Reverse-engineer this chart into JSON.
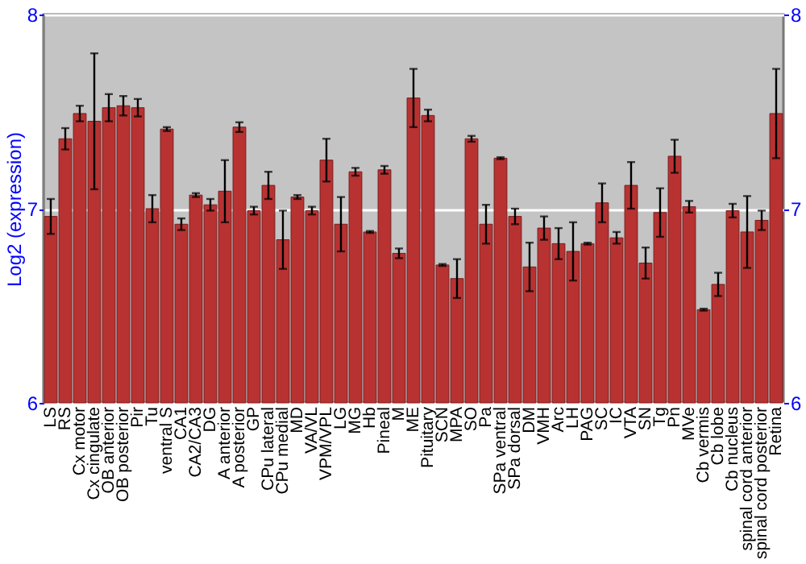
{
  "chart_data": {
    "type": "bar",
    "ylabel": "Log2 (expression)",
    "categories": [
      "LS",
      "RS",
      "Cx motor",
      "Cx cingulate",
      "OB anterior",
      "OB posterior",
      "Pir",
      "Tu",
      "ventral S",
      "CA1",
      "CA2/CA3",
      "DG",
      "A anterior",
      "A posterior",
      "GP",
      "CPu lateral",
      "CPu medial",
      "MD",
      "VA/VL",
      "VPM/VPL",
      "LG",
      "MG",
      "Hb",
      "Pineal",
      "M",
      "ME",
      "Pituitary",
      "SCN",
      "MPA",
      "SO",
      "Pa",
      "SPa ventral",
      "SPa dorsal",
      "DM",
      "VMH",
      "Arc",
      "LH",
      "PAG",
      "SC",
      "IC",
      "VTA",
      "SN",
      "Tg",
      "Pn",
      "MVe",
      "Cb vermis",
      "Cb lobe",
      "Cb nucleus",
      "spinal cord anterior",
      "spinal cord posterior",
      "Retina"
    ],
    "series": [
      {
        "color": "#b83232",
        "values": [
          6.96,
          7.36,
          7.49,
          7.45,
          7.52,
          7.53,
          7.52,
          7.0,
          7.41,
          6.92,
          7.07,
          7.02,
          7.09,
          7.42,
          6.99,
          7.12,
          6.84,
          7.06,
          6.99,
          7.25,
          6.92,
          7.19,
          6.88,
          7.2,
          6.77,
          7.57,
          7.48,
          6.71,
          6.64,
          7.36,
          6.92,
          7.26,
          6.96,
          6.7,
          6.9,
          6.82,
          6.78,
          6.82,
          7.03,
          6.85,
          7.12,
          6.72,
          6.98,
          7.27,
          7.01,
          6.48,
          6.61,
          6.99,
          6.88,
          6.94,
          7.49
        ],
        "errors": [
          0.09,
          0.055,
          0.04,
          0.35,
          0.07,
          0.05,
          0.045,
          0.07,
          0.01,
          0.03,
          0.01,
          0.03,
          0.16,
          0.025,
          0.02,
          0.07,
          0.15,
          0.01,
          0.02,
          0.11,
          0.14,
          0.02,
          0.005,
          0.02,
          0.025,
          0.15,
          0.03,
          0.005,
          0.1,
          0.015,
          0.1,
          0.005,
          0.04,
          0.125,
          0.06,
          0.08,
          0.15,
          0.005,
          0.1,
          0.03,
          0.12,
          0.08,
          0.125,
          0.085,
          0.03,
          0.005,
          0.06,
          0.035,
          0.185,
          0.05,
          0.23
        ]
      }
    ],
    "ylim": [
      6,
      8
    ],
    "yticks": [
      6,
      7,
      8
    ],
    "y2lim": [
      6,
      8
    ],
    "y2ticks": [
      6,
      7,
      8
    ],
    "grid": "y"
  }
}
